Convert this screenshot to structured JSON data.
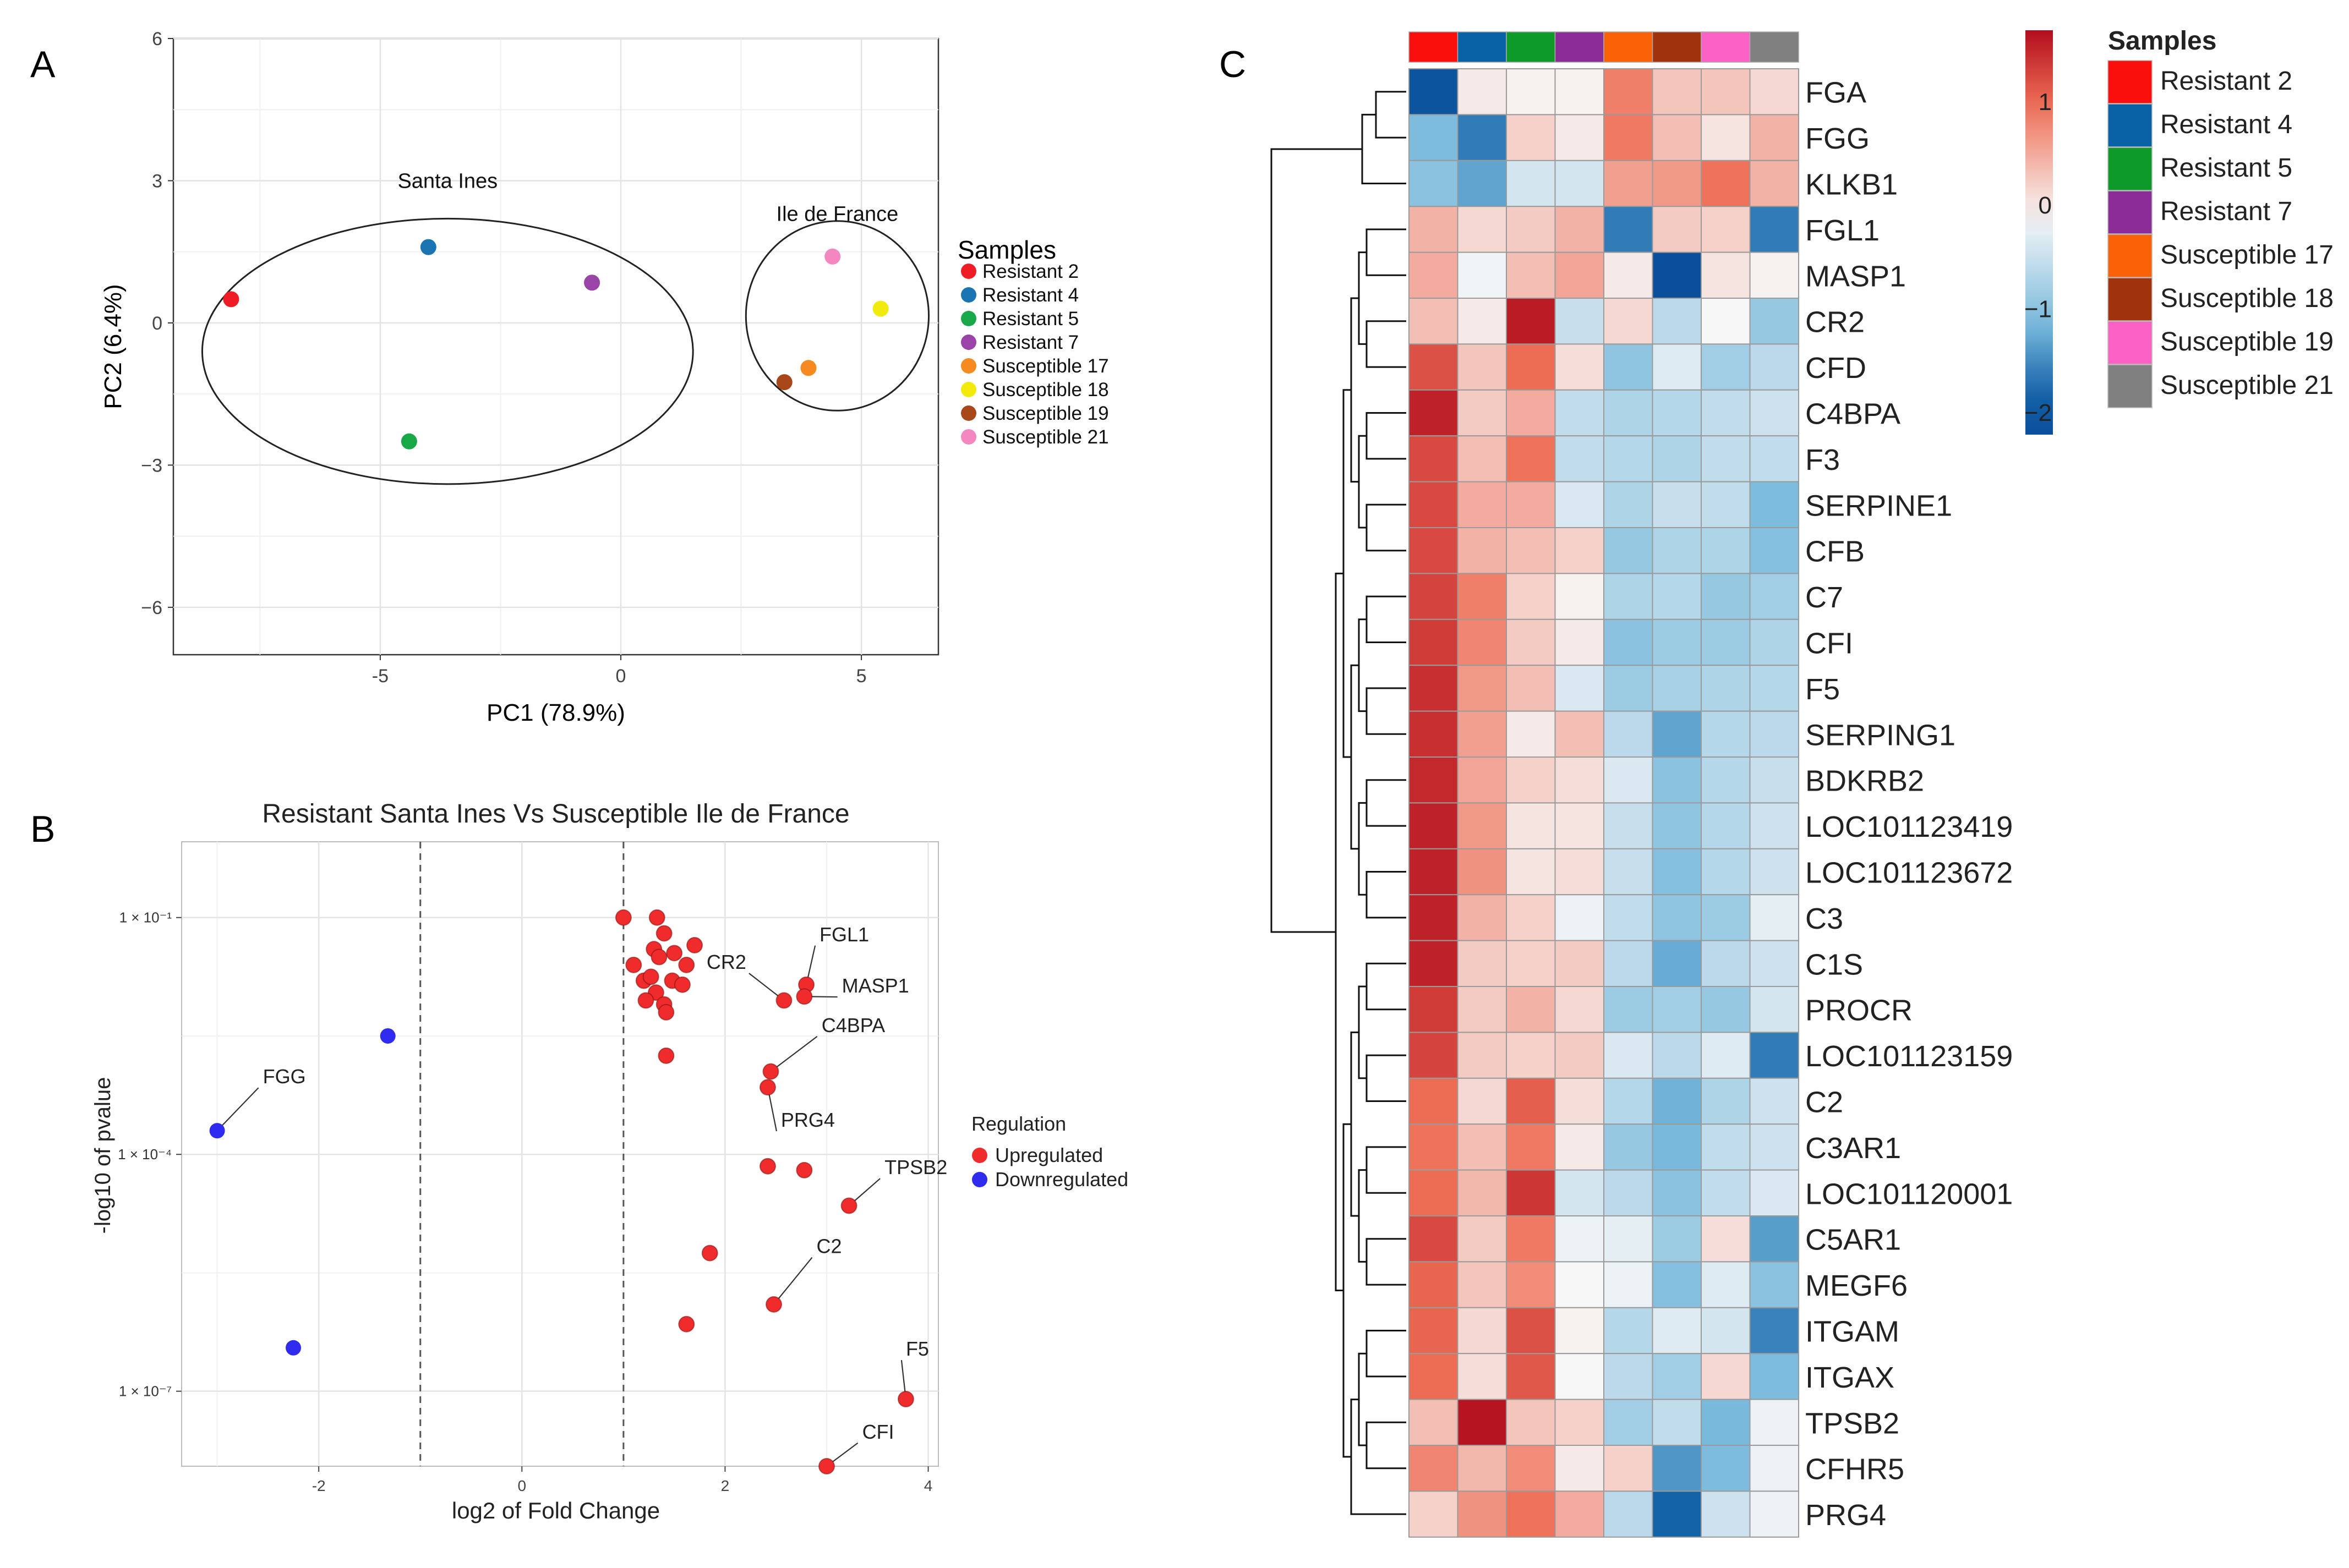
{
  "panels": {
    "pca": {
      "label": "A",
      "chart_data": {
        "type": "scatter",
        "title": "",
        "xlabel": "PC1 (78.9%)",
        "ylabel": "PC2 (6.4%)",
        "xlim": [
          -9.3,
          6.6
        ],
        "ylim": [
          -7.0,
          6.0
        ],
        "xticks": [
          -5,
          0,
          5
        ],
        "yticks": [
          -6,
          -3,
          0,
          3,
          6
        ],
        "xtick_labels": [
          "-5",
          "0",
          "5"
        ],
        "ytick_labels": [
          "−6",
          "−3",
          "0",
          "3",
          "6"
        ],
        "legend_title": "Samples",
        "series": [
          {
            "name": "Resistant 2",
            "color": "#ee1c25",
            "x": -8.1,
            "y": 0.5
          },
          {
            "name": "Resistant 4",
            "color": "#1a75b2",
            "x": -4.0,
            "y": 1.6
          },
          {
            "name": "Resistant 5",
            "color": "#18a848",
            "x": -4.4,
            "y": -2.5
          },
          {
            "name": "Resistant 7",
            "color": "#9a44a8",
            "x": -0.6,
            "y": 0.85
          },
          {
            "name": "Susceptible 17",
            "color": "#f6891f",
            "x": 3.9,
            "y": -0.95
          },
          {
            "name": "Susceptible 18",
            "color": "#f2ea0a",
            "x": 5.4,
            "y": 0.3
          },
          {
            "name": "Susceptible 19",
            "color": "#a8471a",
            "x": 3.4,
            "y": -1.25
          },
          {
            "name": "Susceptible 21",
            "color": "#f487c0",
            "x": 4.4,
            "y": 1.4
          }
        ],
        "groups": [
          {
            "name": "Santa Ines",
            "cx": -3.6,
            "cy": -0.6,
            "rx": 5.1,
            "ry": 2.8
          },
          {
            "name": "Ile de France",
            "cx": 4.5,
            "cy": 0.15,
            "rx": 1.9,
            "ry": 2.0
          }
        ]
      }
    },
    "volcano": {
      "label": "B",
      "chart_data": {
        "type": "scatter",
        "title": "Resistant Santa Ines Vs Susceptible Ile de France",
        "xlabel": "log2 of Fold Change",
        "ylabel": "-log10 of pvalue",
        "xlim": [
          -3.35,
          4.1
        ],
        "ylim": [
          0.04,
          7.95
        ],
        "xticks": [
          -2,
          0,
          2,
          4
        ],
        "xtick_labels": [
          "-2",
          "0",
          "2",
          "4"
        ],
        "yticks": [
          1,
          4,
          7
        ],
        "ytick_labels": [
          "1 × 10⁻¹",
          "1 × 10⁻⁴",
          "1 × 10⁻⁷"
        ],
        "thresholds": [
          -1,
          1
        ],
        "legend_title": "Regulation",
        "legend": [
          {
            "name": "Upregulated",
            "color": "#ef2b2b"
          },
          {
            "name": "Downregulated",
            "color": "#2f2bef"
          }
        ],
        "points": [
          {
            "x": 1.0,
            "y": 1.0,
            "reg": "up"
          },
          {
            "x": 1.33,
            "y": 1.0,
            "reg": "up"
          },
          {
            "x": 1.4,
            "y": 1.2,
            "reg": "up"
          },
          {
            "x": 1.7,
            "y": 1.35,
            "reg": "up"
          },
          {
            "x": 1.3,
            "y": 1.4,
            "reg": "up"
          },
          {
            "x": 1.35,
            "y": 1.5,
            "reg": "up"
          },
          {
            "x": 1.5,
            "y": 1.45,
            "reg": "up"
          },
          {
            "x": 1.1,
            "y": 1.6,
            "reg": "up"
          },
          {
            "x": 1.62,
            "y": 1.6,
            "reg": "up"
          },
          {
            "x": 1.2,
            "y": 1.8,
            "reg": "up"
          },
          {
            "x": 1.27,
            "y": 1.75,
            "reg": "up"
          },
          {
            "x": 1.48,
            "y": 1.8,
            "reg": "up"
          },
          {
            "x": 1.58,
            "y": 1.85,
            "reg": "up"
          },
          {
            "x": 1.32,
            "y": 1.95,
            "reg": "up"
          },
          {
            "x": 1.22,
            "y": 2.05,
            "reg": "up"
          },
          {
            "x": 1.4,
            "y": 2.1,
            "reg": "up"
          },
          {
            "x": 1.42,
            "y": 2.2,
            "reg": "up"
          },
          {
            "x": 2.58,
            "y": 2.05,
            "reg": "up",
            "label": "CR2",
            "lx": 2.1,
            "ly": 1.65
          },
          {
            "x": 2.8,
            "y": 1.85,
            "reg": "up",
            "label": "FGL1",
            "lx": 2.93,
            "ly": 1.3
          },
          {
            "x": 2.78,
            "y": 2.0,
            "reg": "up",
            "label": "MASP1",
            "lx": 3.15,
            "ly": 1.95
          },
          {
            "x": 1.42,
            "y": 2.75,
            "reg": "up"
          },
          {
            "x": 2.45,
            "y": 2.95,
            "reg": "up",
            "label": "C4BPA",
            "lx": 2.95,
            "ly": 2.45
          },
          {
            "x": 2.42,
            "y": 3.15,
            "reg": "up",
            "label": "PRG4",
            "lx": 2.55,
            "ly": 3.65
          },
          {
            "x": 2.42,
            "y": 4.15,
            "reg": "up"
          },
          {
            "x": 2.78,
            "y": 4.2,
            "reg": "up"
          },
          {
            "x": 3.22,
            "y": 4.65,
            "reg": "up",
            "label": "TPSB2",
            "lx": 3.57,
            "ly": 4.25
          },
          {
            "x": 1.85,
            "y": 5.25,
            "reg": "up"
          },
          {
            "x": 2.48,
            "y": 5.9,
            "reg": "up",
            "label": "C2",
            "lx": 2.9,
            "ly": 5.25
          },
          {
            "x": 1.62,
            "y": 6.15,
            "reg": "up"
          },
          {
            "x": 3.78,
            "y": 7.1,
            "reg": "up",
            "label": "F5",
            "lx": 3.78,
            "ly": 6.55
          },
          {
            "x": 3.0,
            "y": 7.95,
            "reg": "up",
            "label": "CFI",
            "lx": 3.35,
            "ly": 7.6
          },
          {
            "x": -3.0,
            "y": 3.7,
            "reg": "down",
            "label": "FGG",
            "lx": -2.55,
            "ly": 3.1
          },
          {
            "x": -1.32,
            "y": 2.5,
            "reg": "down"
          },
          {
            "x": -2.25,
            "y": 6.45,
            "reg": "down"
          }
        ]
      }
    },
    "heatmap": {
      "label": "C",
      "chart_data": {
        "type": "heatmap",
        "title": "",
        "color_scale": {
          "min": -2.1,
          "max": 1.8,
          "ticks": [
            1,
            0,
            -1,
            -2
          ],
          "tick_labels": [
            "1",
            "0",
            "−1",
            "−2"
          ]
        },
        "colors": {
          "low": "#0b4f9c",
          "mid": "#f7f7f7",
          "high": "#b30d1d"
        },
        "legend_title": "Samples",
        "columns": [
          {
            "name": "Resistant 2",
            "color": "#fb0f0c"
          },
          {
            "name": "Resistant 4",
            "color": "#0a62a6"
          },
          {
            "name": "Resistant 5",
            "color": "#0d9a28"
          },
          {
            "name": "Resistant 7",
            "color": "#8c2c96"
          },
          {
            "name": "Susceptible 17",
            "color": "#fb6107"
          },
          {
            "name": "Susceptible 18",
            "color": "#a0330d"
          },
          {
            "name": "Susceptible 19",
            "color": "#fc62c6"
          },
          {
            "name": "Susceptible 21",
            "color": "#808080"
          }
        ],
        "rows": [
          "FGA",
          "FGG",
          "KLKB1",
          "FGL1",
          "MASP1",
          "CR2",
          "CFD",
          "C4BPA",
          "F3",
          "SERPINE1",
          "CFB",
          "C7",
          "CFI",
          "F5",
          "SERPING1",
          "BDKRB2",
          "LOC101123419",
          "LOC101123672",
          "C3",
          "C1S",
          "PROCR",
          "LOC101123159",
          "C2",
          "C3AR1",
          "LOC101120001",
          "C5AR1",
          "MEGF6",
          "ITGAM",
          "ITGAX",
          "TPSB2",
          "CFHR5",
          "PRG4"
        ],
        "values": [
          [
            -2.0,
            0.1,
            0.05,
            0.05,
            0.95,
            0.4,
            0.4,
            0.25
          ],
          [
            -1.0,
            -1.5,
            0.3,
            0.1,
            1.0,
            0.45,
            0.15,
            0.55
          ],
          [
            -0.9,
            -1.2,
            -0.3,
            -0.3,
            0.7,
            0.75,
            1.05,
            0.55
          ],
          [
            0.55,
            0.25,
            0.35,
            0.55,
            -1.5,
            0.35,
            0.3,
            -1.5
          ],
          [
            0.6,
            -0.05,
            0.45,
            0.65,
            0.1,
            -2.1,
            0.15,
            0.05
          ],
          [
            0.45,
            0.1,
            1.7,
            -0.4,
            0.25,
            -0.5,
            0.0,
            -0.8
          ],
          [
            1.3,
            0.4,
            1.1,
            0.2,
            -0.85,
            -0.2,
            -0.7,
            -0.5
          ],
          [
            1.65,
            0.35,
            0.6,
            -0.45,
            -0.6,
            -0.55,
            -0.45,
            -0.35
          ],
          [
            1.35,
            0.45,
            1.05,
            -0.45,
            -0.55,
            -0.6,
            -0.45,
            -0.45
          ],
          [
            1.35,
            0.6,
            0.6,
            -0.25,
            -0.6,
            -0.4,
            -0.45,
            -1.0
          ],
          [
            1.35,
            0.55,
            0.45,
            0.3,
            -0.8,
            -0.6,
            -0.6,
            -0.95
          ],
          [
            1.4,
            0.95,
            0.3,
            0.05,
            -0.6,
            -0.55,
            -0.8,
            -0.7
          ],
          [
            1.45,
            0.9,
            0.35,
            0.1,
            -0.9,
            -0.75,
            -0.75,
            -0.6
          ],
          [
            1.55,
            0.75,
            0.45,
            -0.25,
            -0.75,
            -0.65,
            -0.6,
            -0.55
          ],
          [
            1.55,
            0.7,
            0.1,
            0.45,
            -0.5,
            -1.2,
            -0.55,
            -0.5
          ],
          [
            1.6,
            0.65,
            0.3,
            0.2,
            -0.25,
            -0.9,
            -0.55,
            -0.4
          ],
          [
            1.65,
            0.75,
            0.15,
            0.15,
            -0.4,
            -0.85,
            -0.55,
            -0.35
          ],
          [
            1.65,
            0.8,
            0.15,
            0.2,
            -0.4,
            -0.95,
            -0.55,
            -0.35
          ],
          [
            1.65,
            0.55,
            0.3,
            -0.1,
            -0.45,
            -0.85,
            -0.75,
            -0.15
          ],
          [
            1.65,
            0.35,
            0.3,
            0.35,
            -0.5,
            -1.15,
            -0.5,
            -0.35
          ],
          [
            1.45,
            0.35,
            0.55,
            0.25,
            -0.75,
            -0.7,
            -0.8,
            -0.3
          ],
          [
            1.4,
            0.35,
            0.3,
            0.35,
            -0.25,
            -0.5,
            -0.2,
            -1.5
          ],
          [
            1.1,
            0.25,
            1.2,
            0.2,
            -0.55,
            -1.1,
            -0.6,
            -0.35
          ],
          [
            1.05,
            0.45,
            1.0,
            0.1,
            -0.8,
            -1.05,
            -0.45,
            -0.35
          ],
          [
            1.1,
            0.5,
            1.5,
            -0.3,
            -0.5,
            -0.9,
            -0.45,
            -0.25
          ],
          [
            1.35,
            0.35,
            1.0,
            -0.1,
            -0.15,
            -0.75,
            0.2,
            -1.25
          ],
          [
            1.15,
            0.4,
            0.85,
            0.0,
            -0.1,
            -0.95,
            -0.2,
            -0.9
          ],
          [
            1.15,
            0.25,
            1.3,
            0.05,
            -0.55,
            -0.2,
            -0.3,
            -1.45
          ],
          [
            1.1,
            0.2,
            1.25,
            0.0,
            -0.5,
            -0.7,
            0.25,
            -1.0
          ],
          [
            0.45,
            1.75,
            0.4,
            0.3,
            -0.7,
            -0.45,
            -1.05,
            -0.1
          ],
          [
            0.9,
            0.5,
            0.85,
            0.1,
            0.3,
            -1.3,
            -1.0,
            -0.1
          ],
          [
            0.3,
            0.8,
            1.05,
            0.6,
            -0.5,
            -1.7,
            -0.35,
            -0.1
          ]
        ]
      }
    }
  }
}
